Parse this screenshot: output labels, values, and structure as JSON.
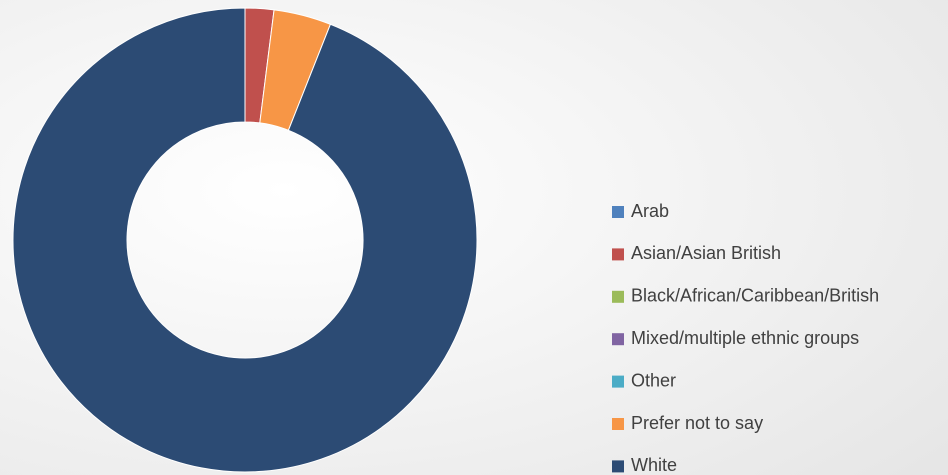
{
  "chart_data": {
    "type": "donut",
    "categories": [
      "Arab",
      "Asian/Asian British",
      "Black/African/Caribbean/British",
      "Mixed/multiple ethnic groups",
      "Other",
      "Prefer not to say",
      "White"
    ],
    "values": [
      0,
      2,
      0,
      0,
      0,
      4,
      94
    ],
    "colors": [
      "#4f81bd",
      "#c0504d",
      "#9bbb59",
      "#8064a2",
      "#4bacc6",
      "#f79646",
      "#2c4b74"
    ],
    "legend": "right"
  }
}
